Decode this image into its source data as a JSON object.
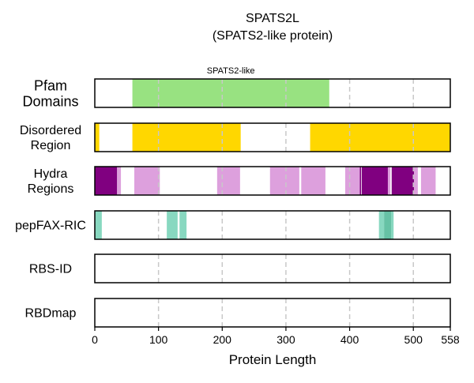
{
  "chart_data": {
    "type": "track",
    "title_line1": "SPATS2L",
    "title_line2": "(SPATS2-like protein)",
    "xlabel": "Protein Length",
    "xlim": [
      0,
      558
    ],
    "xticks": [
      0,
      100,
      200,
      300,
      400,
      500,
      558
    ],
    "gridlines": [
      100,
      200,
      300,
      400,
      500
    ],
    "tracks": [
      {
        "label_lines": [
          "Pfam",
          "Domains"
        ],
        "segments": [
          {
            "start": 59,
            "end": 368,
            "color": "#98e281",
            "label": "SPATS2-like"
          }
        ]
      },
      {
        "label_lines": [
          "Disordered",
          "Region"
        ],
        "segments": [
          {
            "start": 0,
            "end": 7,
            "color": "#ffd700"
          },
          {
            "start": 59,
            "end": 229,
            "color": "#ffd700"
          },
          {
            "start": 338,
            "end": 558,
            "color": "#ffd700"
          }
        ]
      },
      {
        "label_lines": [
          "Hydra",
          "Regions"
        ],
        "segments": [
          {
            "start": 0,
            "end": 35,
            "color": "#800080"
          },
          {
            "start": 35,
            "end": 41,
            "color": "#dda0dd"
          },
          {
            "start": 62,
            "end": 102,
            "color": "#dda0dd"
          },
          {
            "start": 192,
            "end": 228,
            "color": "#dda0dd"
          },
          {
            "start": 275,
            "end": 321,
            "color": "#dda0dd"
          },
          {
            "start": 324,
            "end": 362,
            "color": "#dda0dd"
          },
          {
            "start": 393,
            "end": 416,
            "color": "#dda0dd"
          },
          {
            "start": 416,
            "end": 418,
            "color": "#800080"
          },
          {
            "start": 419,
            "end": 460,
            "color": "#800080"
          },
          {
            "start": 460,
            "end": 464,
            "color": "#dda0dd"
          },
          {
            "start": 466,
            "end": 501,
            "color": "#800080"
          },
          {
            "start": 501,
            "end": 507,
            "color": "#dda0dd"
          },
          {
            "start": 512,
            "end": 535,
            "color": "#dda0dd"
          }
        ]
      },
      {
        "label_lines": [
          "pepFAX-RIC"
        ],
        "segments": [
          {
            "start": 0,
            "end": 11,
            "color": "#88d8c0"
          },
          {
            "start": 113,
            "end": 130,
            "color": "#88d8c0"
          },
          {
            "start": 133,
            "end": 144,
            "color": "#88d8c0"
          },
          {
            "start": 446,
            "end": 454,
            "color": "#88d8c0"
          },
          {
            "start": 454,
            "end": 465,
            "color": "#66c2a5"
          },
          {
            "start": 465,
            "end": 469,
            "color": "#88d8c0"
          }
        ]
      },
      {
        "label_lines": [
          "RBS-ID"
        ],
        "segments": []
      },
      {
        "label_lines": [
          "RBDmap"
        ],
        "segments": []
      }
    ]
  }
}
